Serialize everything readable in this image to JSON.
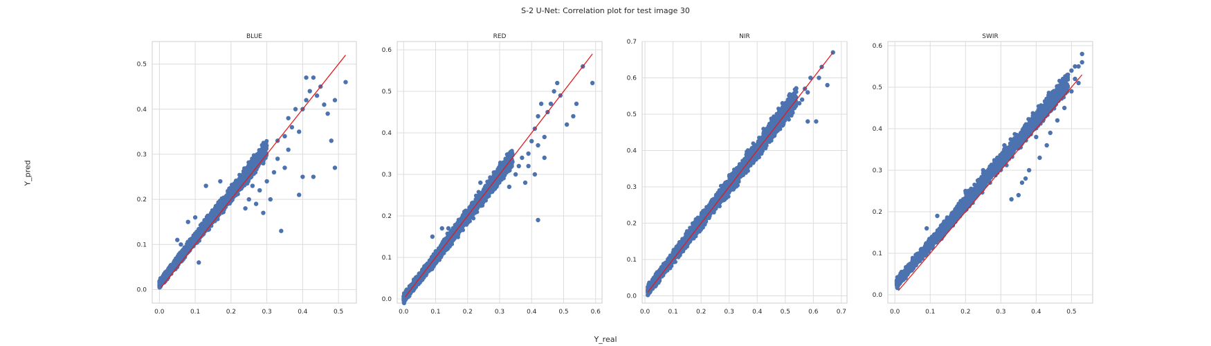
{
  "figure": {
    "suptitle": "S-2 U-Net: Correlation plot for test image 30",
    "xlabel": "Y_real",
    "ylabel": "Y_pred"
  },
  "colors": {
    "points": "#4c72b0",
    "line": "#e31a1c",
    "grid": "#dcdcdc",
    "frame": "#cccccc",
    "text": "#262626"
  },
  "chart_data": [
    {
      "type": "scatter",
      "title": "BLUE",
      "xlim": [
        -0.02,
        0.55
      ],
      "ylim": [
        -0.03,
        0.55
      ],
      "xticks": [
        "0.0",
        "0.1",
        "0.2",
        "0.3",
        "0.4",
        "0.5"
      ],
      "yticks": [
        "0.0",
        "0.1",
        "0.2",
        "0.3",
        "0.4",
        "0.5"
      ],
      "identity_line": [
        [
          0.005,
          0.005
        ],
        [
          0.52,
          0.52
        ]
      ],
      "point_cloud": {
        "x_range": [
          0.0,
          0.3
        ],
        "offset": 0.012,
        "spread": 0.018
      },
      "scatter_points": [
        [
          0.52,
          0.46
        ],
        [
          0.49,
          0.42
        ],
        [
          0.47,
          0.39
        ],
        [
          0.48,
          0.33
        ],
        [
          0.49,
          0.27
        ],
        [
          0.46,
          0.41
        ],
        [
          0.44,
          0.43
        ],
        [
          0.43,
          0.47
        ],
        [
          0.41,
          0.47
        ],
        [
          0.45,
          0.45
        ],
        [
          0.42,
          0.44
        ],
        [
          0.41,
          0.42
        ],
        [
          0.4,
          0.4
        ],
        [
          0.38,
          0.4
        ],
        [
          0.39,
          0.35
        ],
        [
          0.43,
          0.25
        ],
        [
          0.4,
          0.25
        ],
        [
          0.39,
          0.21
        ],
        [
          0.37,
          0.36
        ],
        [
          0.36,
          0.31
        ],
        [
          0.35,
          0.34
        ],
        [
          0.33,
          0.29
        ],
        [
          0.34,
          0.13
        ],
        [
          0.32,
          0.26
        ],
        [
          0.3,
          0.24
        ],
        [
          0.29,
          0.28
        ],
        [
          0.28,
          0.22
        ],
        [
          0.27,
          0.19
        ],
        [
          0.26,
          0.23
        ],
        [
          0.36,
          0.38
        ],
        [
          0.35,
          0.27
        ],
        [
          0.33,
          0.33
        ],
        [
          0.31,
          0.2
        ],
        [
          0.29,
          0.17
        ],
        [
          0.25,
          0.2
        ],
        [
          0.24,
          0.18
        ],
        [
          0.17,
          0.24
        ],
        [
          0.13,
          0.23
        ],
        [
          0.19,
          0.19
        ],
        [
          0.1,
          0.16
        ],
        [
          0.08,
          0.15
        ],
        [
          0.12,
          0.14
        ],
        [
          0.11,
          0.06
        ],
        [
          0.06,
          0.1
        ],
        [
          0.05,
          0.11
        ]
      ]
    },
    {
      "type": "scatter",
      "title": "RED",
      "xlim": [
        -0.02,
        0.62
      ],
      "ylim": [
        -0.01,
        0.62
      ],
      "xticks": [
        "0.0",
        "0.1",
        "0.2",
        "0.3",
        "0.4",
        "0.5",
        "0.6"
      ],
      "yticks": [
        "0.0",
        "0.1",
        "0.2",
        "0.3",
        "0.4",
        "0.5",
        "0.6"
      ],
      "identity_line": [
        [
          0.005,
          0.005
        ],
        [
          0.59,
          0.59
        ]
      ],
      "point_cloud": {
        "x_range": [
          0.0,
          0.34
        ],
        "offset": 0.0,
        "spread": 0.02
      },
      "scatter_points": [
        [
          0.59,
          0.52
        ],
        [
          0.56,
          0.56
        ],
        [
          0.54,
          0.47
        ],
        [
          0.53,
          0.44
        ],
        [
          0.51,
          0.42
        ],
        [
          0.49,
          0.49
        ],
        [
          0.48,
          0.52
        ],
        [
          0.47,
          0.5
        ],
        [
          0.46,
          0.47
        ],
        [
          0.45,
          0.45
        ],
        [
          0.44,
          0.39
        ],
        [
          0.43,
          0.47
        ],
        [
          0.42,
          0.44
        ],
        [
          0.41,
          0.41
        ],
        [
          0.42,
          0.37
        ],
        [
          0.4,
          0.38
        ],
        [
          0.39,
          0.35
        ],
        [
          0.39,
          0.32
        ],
        [
          0.41,
          0.3
        ],
        [
          0.37,
          0.34
        ],
        [
          0.36,
          0.32
        ],
        [
          0.35,
          0.3
        ],
        [
          0.42,
          0.19
        ],
        [
          0.38,
          0.28
        ],
        [
          0.34,
          0.33
        ],
        [
          0.33,
          0.27
        ],
        [
          0.44,
          0.34
        ],
        [
          0.24,
          0.28
        ],
        [
          0.22,
          0.22
        ],
        [
          0.19,
          0.21
        ],
        [
          0.14,
          0.17
        ],
        [
          0.12,
          0.17
        ],
        [
          0.09,
          0.15
        ]
      ]
    },
    {
      "type": "scatter",
      "title": "NIR",
      "xlim": [
        -0.01,
        0.72
      ],
      "ylim": [
        -0.02,
        0.7
      ],
      "xticks": [
        "0.0",
        "0.1",
        "0.2",
        "0.3",
        "0.4",
        "0.5",
        "0.6",
        "0.7"
      ],
      "yticks": [
        "0.0",
        "0.1",
        "0.2",
        "0.3",
        "0.4",
        "0.5",
        "0.6",
        "0.7"
      ],
      "identity_line": [
        [
          0.01,
          0.01
        ],
        [
          0.67,
          0.67
        ]
      ],
      "point_cloud": {
        "x_range": [
          0.01,
          0.54
        ],
        "offset": 0.005,
        "spread": 0.028
      },
      "scatter_points": [
        [
          0.67,
          0.67
        ],
        [
          0.65,
          0.58
        ],
        [
          0.63,
          0.63
        ],
        [
          0.62,
          0.6
        ],
        [
          0.61,
          0.48
        ],
        [
          0.59,
          0.6
        ],
        [
          0.58,
          0.56
        ],
        [
          0.57,
          0.57
        ],
        [
          0.56,
          0.54
        ],
        [
          0.55,
          0.53
        ],
        [
          0.58,
          0.48
        ],
        [
          0.53,
          0.55
        ],
        [
          0.52,
          0.52
        ],
        [
          0.51,
          0.54
        ],
        [
          0.49,
          0.53
        ],
        [
          0.5,
          0.5
        ]
      ]
    },
    {
      "type": "scatter",
      "title": "SWIR",
      "xlim": [
        -0.02,
        0.56
      ],
      "ylim": [
        -0.02,
        0.61
      ],
      "xticks": [
        "0.0",
        "0.1",
        "0.2",
        "0.3",
        "0.4",
        "0.5"
      ],
      "yticks": [
        "0.0",
        "0.1",
        "0.2",
        "0.3",
        "0.4",
        "0.5",
        "0.6"
      ],
      "identity_line": [
        [
          0.01,
          0.01
        ],
        [
          0.53,
          0.53
        ]
      ],
      "point_cloud": {
        "x_range": [
          0.005,
          0.49
        ],
        "offset": 0.022,
        "spread": 0.022
      },
      "scatter_points": [
        [
          0.53,
          0.58
        ],
        [
          0.53,
          0.56
        ],
        [
          0.52,
          0.55
        ],
        [
          0.52,
          0.51
        ],
        [
          0.51,
          0.55
        ],
        [
          0.51,
          0.52
        ],
        [
          0.5,
          0.54
        ],
        [
          0.5,
          0.49
        ],
        [
          0.49,
          0.53
        ],
        [
          0.48,
          0.45
        ],
        [
          0.47,
          0.5
        ],
        [
          0.46,
          0.42
        ],
        [
          0.44,
          0.39
        ],
        [
          0.43,
          0.36
        ],
        [
          0.41,
          0.33
        ],
        [
          0.4,
          0.38
        ],
        [
          0.38,
          0.3
        ],
        [
          0.37,
          0.28
        ],
        [
          0.36,
          0.27
        ],
        [
          0.35,
          0.24
        ],
        [
          0.33,
          0.23
        ],
        [
          0.31,
          0.36
        ],
        [
          0.29,
          0.33
        ],
        [
          0.25,
          0.3
        ],
        [
          0.2,
          0.25
        ],
        [
          0.12,
          0.19
        ],
        [
          0.09,
          0.16
        ]
      ]
    }
  ]
}
